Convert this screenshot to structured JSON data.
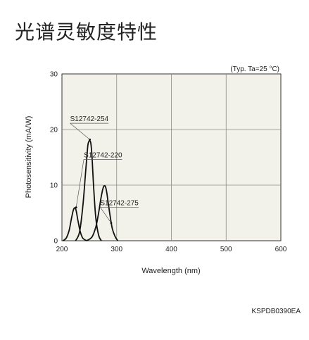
{
  "title": "光谱灵敏度特性",
  "chart_data": {
    "type": "line",
    "note": "(Typ. Ta=25 °C)",
    "xlabel": "Wavelength (nm)",
    "ylabel": "Photosensitivity (mA/W)",
    "xlim": [
      200,
      600
    ],
    "ylim": [
      0,
      30
    ],
    "xticks": [
      200,
      300,
      400,
      500,
      600
    ],
    "yticks": [
      0,
      10,
      20,
      30
    ],
    "grid": true,
    "series": [
      {
        "name": "S12742-254",
        "label_at": [
          250,
          21.5
        ],
        "pointer_to": [
          251,
          18.2
        ],
        "x": [
          225,
          232,
          238,
          243,
          247,
          249,
          251,
          253,
          255,
          258,
          262,
          267,
          272
        ],
        "values": [
          0,
          1.5,
          6,
          12,
          16.8,
          17.8,
          18,
          17.4,
          15,
          9.5,
          4,
          1,
          0
        ]
      },
      {
        "name": "S12742-220",
        "label_at": [
          275,
          15
        ],
        "pointer_to": [
          226,
          6
        ],
        "x": [
          202,
          208,
          213,
          217,
          220,
          222,
          224,
          226,
          229,
          233,
          238,
          245
        ],
        "values": [
          0,
          0.5,
          1.8,
          3.8,
          5.2,
          5.8,
          5.9,
          5.4,
          3.8,
          1.8,
          0.5,
          0
        ]
      },
      {
        "name": "S12742-275",
        "label_at": [
          305,
          6.4
        ],
        "pointer_to": [
          290,
          3.2
        ],
        "x": [
          245,
          255,
          262,
          267,
          271,
          274,
          276,
          278,
          280,
          282,
          285,
          288,
          292,
          297,
          302
        ],
        "values": [
          0,
          0.7,
          2.5,
          5,
          7.5,
          9,
          9.7,
          9.9,
          9.6,
          8.6,
          6.5,
          4.5,
          2.2,
          0.8,
          0
        ]
      }
    ]
  },
  "doc_code": "KSPDB0390EA"
}
